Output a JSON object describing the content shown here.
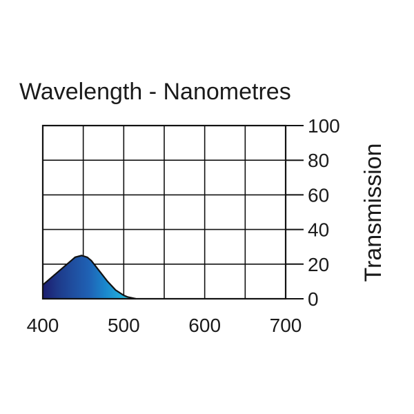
{
  "chart_data": {
    "type": "area",
    "title": "Wavelength - Nanometres",
    "ylabel": "Transmission",
    "xlim": [
      400,
      700
    ],
    "ylim": [
      0,
      100
    ],
    "x_ticks": [
      400,
      500,
      600,
      700
    ],
    "y_ticks": [
      0,
      20,
      40,
      60,
      80,
      100
    ],
    "grid": true,
    "y_axis_position": "right",
    "series": [
      {
        "x": [
          400,
          410,
          420,
          430,
          440,
          448,
          455,
          460,
          470,
          480,
          490,
          500,
          505,
          510,
          515
        ],
        "values": [
          8,
          12,
          16,
          20,
          24,
          25,
          24,
          22,
          16,
          10,
          5,
          2,
          1,
          0.5,
          0
        ]
      }
    ],
    "fill_gradient": [
      "#1c1d6e",
      "#1e3a8a",
      "#1f4fa0",
      "#1f62b5",
      "#1a86cc",
      "#22a9d9",
      "#2ec4c4"
    ]
  }
}
